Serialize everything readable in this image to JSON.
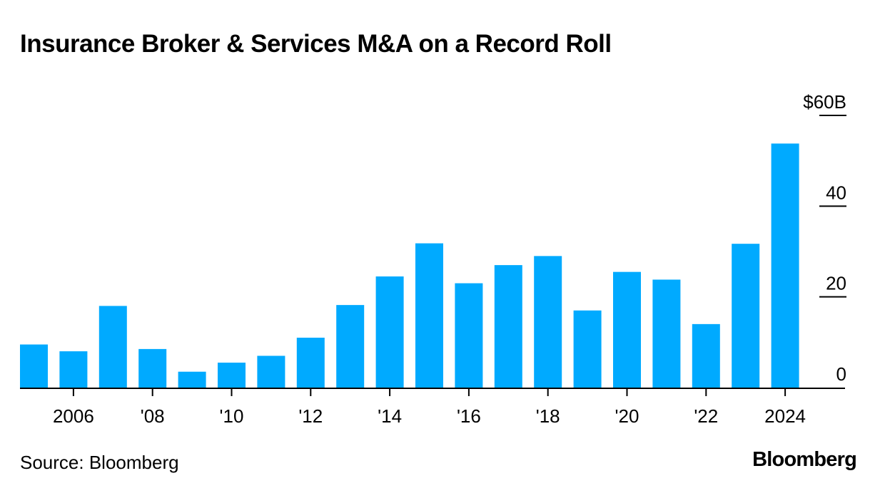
{
  "title": "Insurance Broker & Services M&A on a Record Roll",
  "source": "Source: Bloomberg",
  "logo": "Bloomberg",
  "colors": {
    "bar": "#00AAFF",
    "axis": "#000000",
    "background": "#FFFFFF"
  },
  "chart_data": {
    "type": "bar",
    "categories": [
      "2005",
      "2006",
      "2007",
      "2008",
      "2009",
      "2010",
      "2011",
      "2012",
      "2013",
      "2014",
      "2015",
      "2016",
      "2017",
      "2018",
      "2019",
      "2020",
      "2021",
      "2022",
      "2023",
      "2024"
    ],
    "values": [
      9.5,
      8,
      18,
      8.5,
      3.5,
      5.5,
      7,
      11,
      18.2,
      24.5,
      31.8,
      23,
      27,
      29,
      17,
      25.5,
      23.8,
      14,
      31.7,
      53.8
    ],
    "ylim": [
      0,
      60
    ],
    "y_ticks": [
      0,
      20,
      40,
      60
    ],
    "y_tick_labels": [
      "0",
      "20",
      "40",
      "$60B"
    ],
    "x_ticks": [
      "2006",
      "2008",
      "2010",
      "2012",
      "2014",
      "2016",
      "2018",
      "2020",
      "2022",
      "2024"
    ],
    "x_tick_labels": [
      "2006",
      "'08",
      "'10",
      "'12",
      "'14",
      "'16",
      "'18",
      "'20",
      "'22",
      "2024"
    ],
    "xlabel": "",
    "ylabel": "",
    "grid": false,
    "y_axis_position": "right"
  }
}
